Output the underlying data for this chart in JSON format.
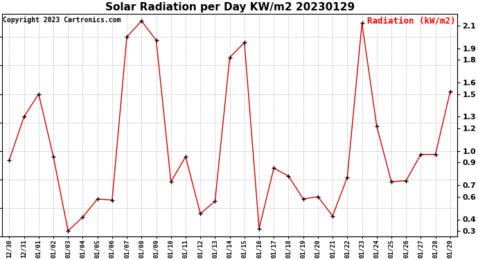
{
  "title": "Solar Radiation per Day KW/m2 20230129",
  "copyright_text": "Copyright 2023 Cartronics.com",
  "legend_label": "Radiation (kW/m2)",
  "dates": [
    "12/30",
    "12/31",
    "01/01",
    "01/02",
    "01/03",
    "01/04",
    "01/05",
    "01/06",
    "01/07",
    "01/08",
    "01/09",
    "01/10",
    "01/11",
    "01/12",
    "01/13",
    "01/14",
    "01/15",
    "01/16",
    "01/17",
    "01/18",
    "01/19",
    "01/20",
    "01/21",
    "01/22",
    "01/23",
    "01/24",
    "01/25",
    "01/26",
    "01/27",
    "01/28",
    "01/29"
  ],
  "values": [
    0.92,
    1.3,
    1.5,
    0.95,
    0.3,
    0.42,
    0.58,
    0.57,
    2.0,
    2.14,
    1.97,
    0.73,
    0.95,
    0.45,
    0.56,
    1.82,
    1.95,
    0.32,
    0.85,
    0.78,
    0.58,
    0.6,
    0.43,
    0.77,
    2.12,
    1.22,
    0.73,
    0.74,
    0.97,
    0.97,
    1.52
  ],
  "line_color": "#cc0000",
  "marker_color": "#000000",
  "bg_color": "#ffffff",
  "grid_color": "#bbbbbb",
  "title_fontsize": 11,
  "copyright_fontsize": 7,
  "legend_fontsize": 9,
  "ylim": [
    0.25,
    2.2
  ],
  "yticks": [
    0.3,
    0.4,
    0.6,
    0.7,
    0.9,
    1.0,
    1.2,
    1.3,
    1.5,
    1.6,
    1.8,
    1.9,
    2.1
  ],
  "ytick_labels": [
    "0.3",
    "0.4",
    "0.6",
    "0.7",
    "0.9",
    "1.0",
    "1.2",
    "1.3",
    "1.5",
    "1.6",
    "1.8",
    "1.9",
    "2.1"
  ]
}
